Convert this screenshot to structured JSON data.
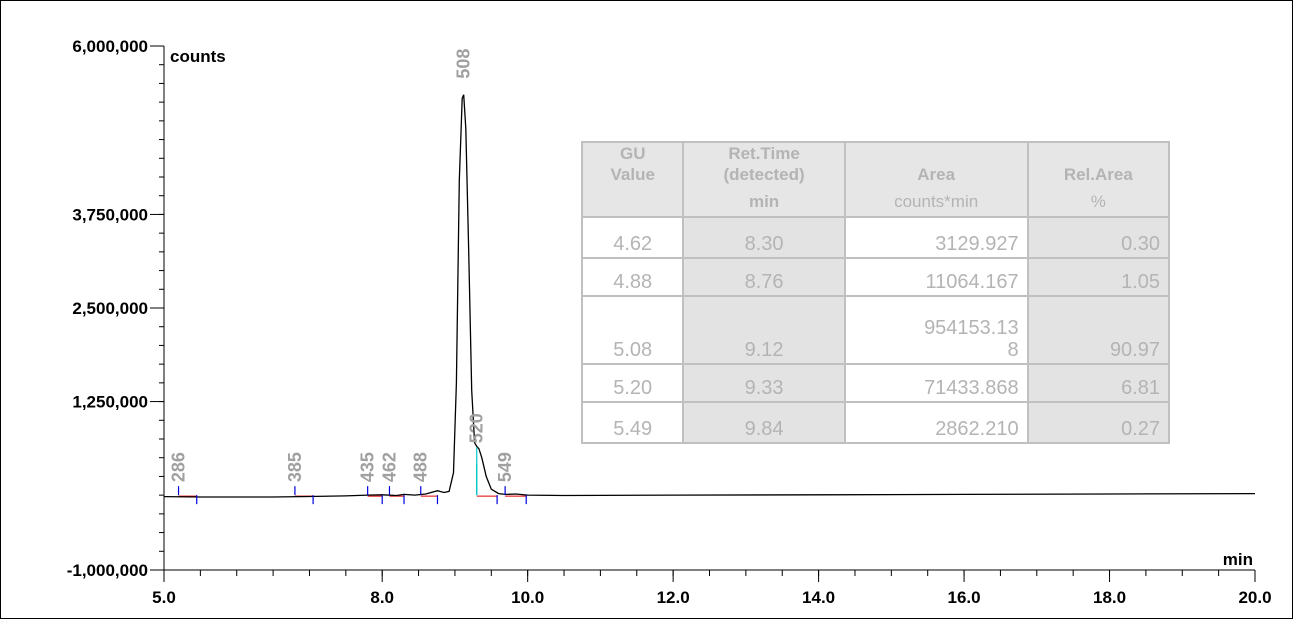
{
  "chart_data": {
    "type": "line",
    "x_unit": "min",
    "y_unit": "counts",
    "xlim": [
      5.0,
      20.0
    ],
    "ylim": [
      -1000000,
      6000000
    ],
    "x_ticks": [
      {
        "value": 5.0,
        "label": "5.0"
      },
      {
        "value": 8.0,
        "label": "8.0"
      },
      {
        "value": 10.0,
        "label": "10.0"
      },
      {
        "value": 12.0,
        "label": "12.0"
      },
      {
        "value": 14.0,
        "label": "14.0"
      },
      {
        "value": 16.0,
        "label": "16.0"
      },
      {
        "value": 18.0,
        "label": "18.0"
      },
      {
        "value": 20.0,
        "label": "20.0"
      }
    ],
    "y_ticks": [
      {
        "value": 6000000,
        "label": "6,000,000"
      },
      {
        "value": 3750000,
        "label": "3,750,000"
      },
      {
        "value": 2500000,
        "label": "2,500,000"
      },
      {
        "value": 1250000,
        "label": "1,250,000"
      },
      {
        "value": -1000000,
        "label": "-1,000,000"
      }
    ],
    "trace": {
      "color": "#000000",
      "points": [
        [
          5.0,
          -20000
        ],
        [
          5.5,
          -25000
        ],
        [
          6.0,
          -25000
        ],
        [
          6.5,
          -25000
        ],
        [
          7.0,
          -18000
        ],
        [
          7.5,
          -10000
        ],
        [
          7.8,
          0
        ],
        [
          8.0,
          5000
        ],
        [
          8.2,
          -5000
        ],
        [
          8.3,
          10000
        ],
        [
          8.45,
          0
        ],
        [
          8.6,
          15000
        ],
        [
          8.76,
          60000
        ],
        [
          8.85,
          35000
        ],
        [
          8.92,
          50000
        ],
        [
          8.98,
          300000
        ],
        [
          9.02,
          1500000
        ],
        [
          9.06,
          4200000
        ],
        [
          9.1,
          5300000
        ],
        [
          9.12,
          5350000
        ],
        [
          9.15,
          4900000
        ],
        [
          9.19,
          3200000
        ],
        [
          9.23,
          1400000
        ],
        [
          9.27,
          700000
        ],
        [
          9.3,
          650000
        ],
        [
          9.33,
          620000
        ],
        [
          9.37,
          500000
        ],
        [
          9.43,
          250000
        ],
        [
          9.5,
          80000
        ],
        [
          9.6,
          20000
        ],
        [
          9.7,
          10000
        ],
        [
          9.84,
          15000
        ],
        [
          10.0,
          0
        ],
        [
          10.5,
          -5000
        ],
        [
          12.0,
          0
        ],
        [
          14.0,
          5000
        ],
        [
          16.0,
          10000
        ],
        [
          18.0,
          15000
        ],
        [
          20.0,
          20000
        ]
      ]
    },
    "peaks": [
      {
        "label": "286",
        "x": 5.2,
        "x_end": 5.45,
        "tick_height": 120000
      },
      {
        "label": "385",
        "x": 6.8,
        "x_end": 7.05,
        "tick_height": 120000
      },
      {
        "label": "435",
        "x": 7.8,
        "x_end": 8.0,
        "tick_height": 120000
      },
      {
        "label": "462",
        "x": 8.1,
        "x_end": 8.3,
        "tick_height": 120000
      },
      {
        "label": "488",
        "x": 8.53,
        "x_end": 8.76,
        "tick_height": 120000
      },
      {
        "label": "508",
        "x": 9.12,
        "x_end": null,
        "tick_height": 0
      },
      {
        "label": "520",
        "x": 9.3,
        "x_end": 9.58,
        "tick_height": 640000
      },
      {
        "label": "549",
        "x": 9.69,
        "x_end": 9.98,
        "tick_height": 120000
      }
    ],
    "table": {
      "headers": [
        {
          "lines": [
            "GU",
            "Value"
          ],
          "unit": ""
        },
        {
          "lines": [
            "Ret.Time",
            "(detected)"
          ],
          "unit": "min"
        },
        {
          "lines": [
            "Area"
          ],
          "unit": "counts*min"
        },
        {
          "lines": [
            "Rel.Area"
          ],
          "unit": "%"
        }
      ],
      "rows": [
        {
          "gu": "4.62",
          "ret_time": "8.30",
          "area": "3129.927",
          "rel_area": "0.30"
        },
        {
          "gu": "4.88",
          "ret_time": "8.76",
          "area": "11064.167",
          "rel_area": "1.05"
        },
        {
          "gu": "5.08",
          "ret_time": "9.12",
          "area_line1": "954153.13",
          "area": "8",
          "rel_area": "90.97"
        },
        {
          "gu": "5.20",
          "ret_time": "9.33",
          "area": "71433.868",
          "rel_area": "6.81"
        },
        {
          "gu": "5.49",
          "ret_time": "9.84",
          "area": "2862.210",
          "rel_area": "0.27"
        }
      ]
    }
  }
}
